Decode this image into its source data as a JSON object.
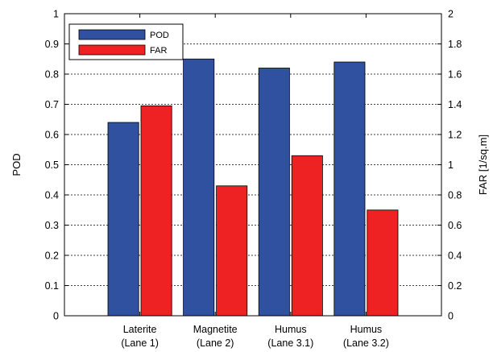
{
  "chart_data": {
    "type": "bar",
    "categories": [
      [
        "Laterite",
        "(Lane 1)"
      ],
      [
        "Magnetite",
        "(Lane 2)"
      ],
      [
        "Humus",
        "(Lane 3.1)"
      ],
      [
        "Humus",
        "(Lane 3.2)"
      ]
    ],
    "series": [
      {
        "name": "POD",
        "axis": "left",
        "color": "#3050a0",
        "values": [
          0.64,
          0.85,
          0.82,
          0.84
        ]
      },
      {
        "name": "FAR",
        "axis": "right",
        "color": "#ee2222",
        "values": [
          1.39,
          0.86,
          1.06,
          0.7
        ]
      }
    ],
    "ylabel_left": "POD",
    "ylabel_right": "FAR [1/sq.m]",
    "ylim_left": [
      0,
      1
    ],
    "ylim_right": [
      0,
      2
    ],
    "yticks_left": [
      "0",
      "0.1",
      "0.2",
      "0.3",
      "0.4",
      "0.5",
      "0.6",
      "0.7",
      "0.8",
      "0.9",
      "1"
    ],
    "yticks_right": [
      "0",
      "0.2",
      "0.4",
      "0.6",
      "0.8",
      "1",
      "1.2",
      "1.4",
      "1.6",
      "1.8",
      "2"
    ],
    "grid": true,
    "legend_position": "top-left"
  }
}
